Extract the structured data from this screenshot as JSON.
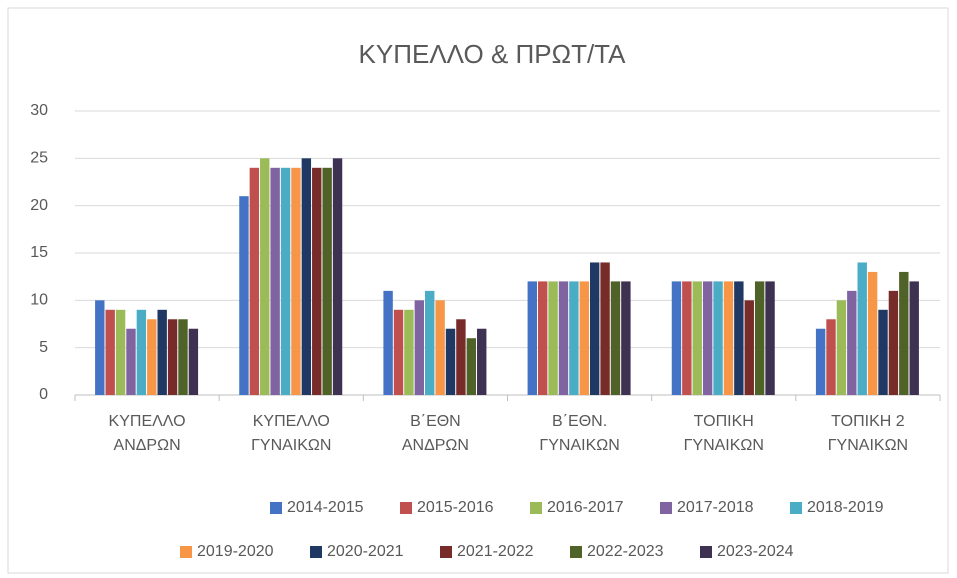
{
  "chart_data": {
    "type": "bar",
    "title": "ΚΥΠΕΛΛΟ & ΠΡΩΤ/ΤΑ",
    "categories": [
      "ΚΥΠΕΛΛΟ ΑΝΔΡΩΝ",
      "ΚΥΠΕΛΛΟ ΓΥΝΑΙΚΩΝ",
      "Β΄ΕΘΝ ΑΝΔΡΩΝ",
      "Β΄ΕΘΝ. ΓΥΝΑΙΚΩΝ",
      "ΤΟΠΙΚΗ ΓΥΝΑΙΚΩΝ",
      "ΤΟΠΙΚΗ 2 ΓΥΝΑΙΚΩΝ"
    ],
    "series": [
      {
        "name": "2014-2015",
        "color": "#4472c4",
        "values": [
          10,
          21,
          11,
          12,
          12,
          7
        ]
      },
      {
        "name": "2015-2016",
        "color": "#c0504d",
        "values": [
          9,
          24,
          9,
          12,
          12,
          8
        ]
      },
      {
        "name": "2016-2017",
        "color": "#9bbb59",
        "values": [
          9,
          25,
          9,
          12,
          12,
          10
        ]
      },
      {
        "name": "2017-2018",
        "color": "#8064a2",
        "values": [
          7,
          24,
          10,
          12,
          12,
          11
        ]
      },
      {
        "name": "2018-2019",
        "color": "#4bacc6",
        "values": [
          9,
          24,
          11,
          12,
          12,
          14
        ]
      },
      {
        "name": "2019-2020",
        "color": "#f79646",
        "values": [
          8,
          24,
          10,
          12,
          12,
          13
        ]
      },
      {
        "name": "2020-2021",
        "color": "#1f3864",
        "values": [
          9,
          25,
          7,
          14,
          12,
          9
        ]
      },
      {
        "name": "2021-2022",
        "color": "#772c2a",
        "values": [
          8,
          24,
          8,
          14,
          10,
          11
        ]
      },
      {
        "name": "2022-2023",
        "color": "#4f6228",
        "values": [
          8,
          24,
          6,
          12,
          12,
          13
        ]
      },
      {
        "name": "2023-2024",
        "color": "#3f3151",
        "values": [
          7,
          25,
          7,
          12,
          12,
          12
        ]
      }
    ],
    "ylim": [
      0,
      30
    ],
    "yticks": [
      0,
      5,
      10,
      15,
      20,
      25,
      30
    ],
    "grid": true,
    "legend": "bottom"
  }
}
